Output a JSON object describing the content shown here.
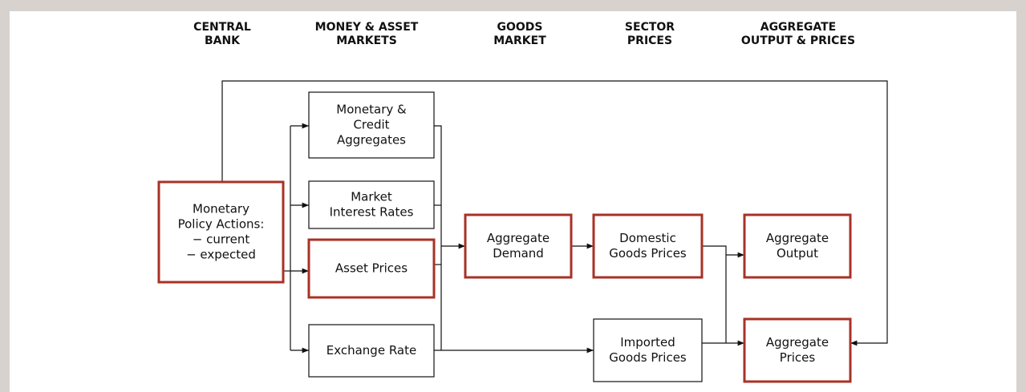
{
  "headers": [
    {
      "lines": [
        "CENTRAL",
        "BANK"
      ]
    },
    {
      "lines": [
        "MONEY & ASSET",
        "MARKETS"
      ]
    },
    {
      "lines": [
        "GOODS",
        "MARKET"
      ]
    },
    {
      "lines": [
        "SECTOR",
        "PRICES"
      ]
    },
    {
      "lines": [
        "AGGREGATE",
        "OUTPUT & PRICES"
      ]
    }
  ],
  "nodes": [
    {
      "lines": [
        "Monetary",
        "Policy Actions:",
        "− current",
        "− expected"
      ]
    },
    {
      "lines": [
        "Monetary &",
        "Credit",
        "Aggregates"
      ]
    },
    {
      "lines": [
        "Market",
        "Interest Rates"
      ]
    },
    {
      "lines": [
        "Asset Prices"
      ]
    },
    {
      "lines": [
        "Exchange Rate"
      ]
    },
    {
      "lines": [
        "Aggregate",
        "Demand"
      ]
    },
    {
      "lines": [
        "Domestic",
        "Goods Prices"
      ]
    },
    {
      "lines": [
        "Imported",
        "Goods Prices"
      ]
    },
    {
      "lines": [
        "Aggregate",
        "Output"
      ]
    },
    {
      "lines": [
        "Aggregate",
        "Prices"
      ]
    }
  ]
}
